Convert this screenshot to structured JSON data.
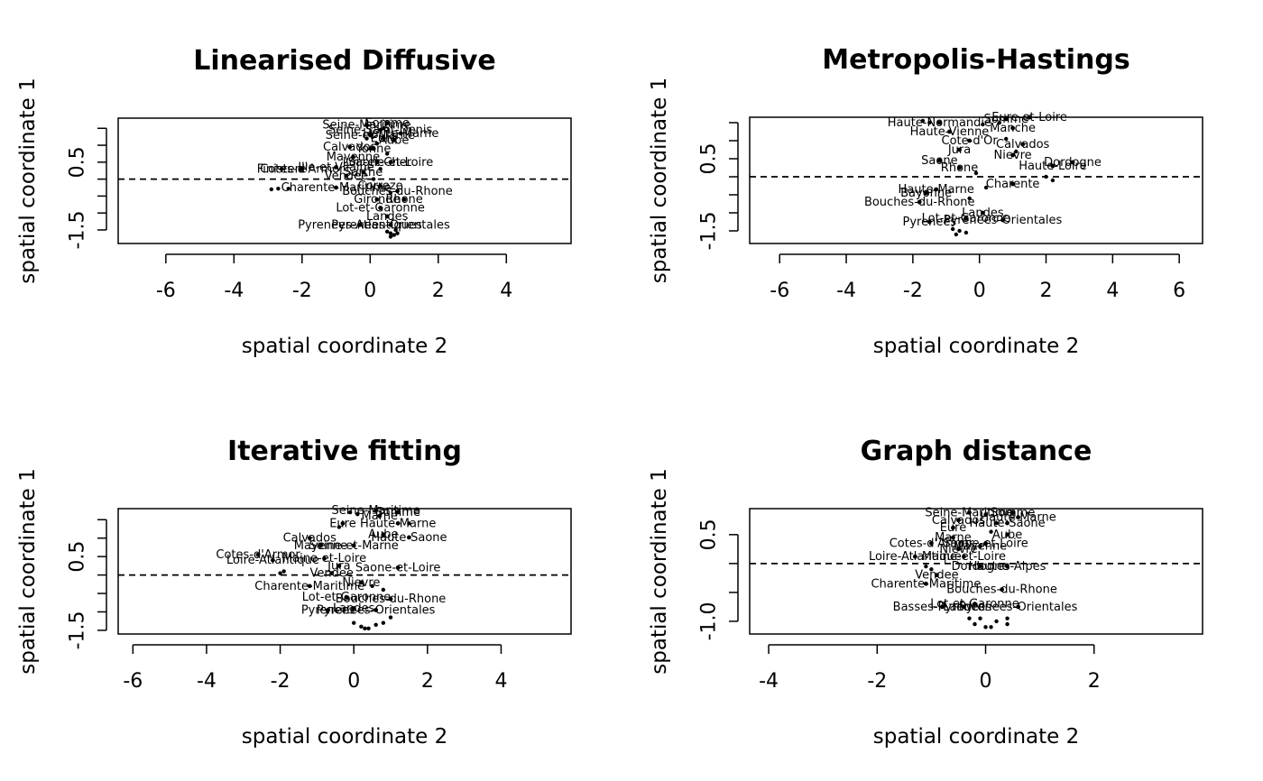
{
  "chart_data": [
    {
      "type": "scatter",
      "title": "Linearised Diffusive",
      "xlabel": "spatial coordinate 2",
      "ylabel": "spatial coordinate 1",
      "xlim": [
        -7.4,
        5.9
      ],
      "ylim": [
        -1.9,
        1.8
      ],
      "xticks": [
        -6,
        -4,
        -2,
        0,
        2,
        4
      ],
      "yticks": [
        -1.5,
        -1.0,
        -0.5,
        0.0,
        0.5,
        1.0,
        1.5
      ],
      "ytick_labels": [
        "-1.5",
        "",
        "",
        "",
        "0.5",
        "",
        ""
      ],
      "hline": 0,
      "points": [
        {
          "x": -0.1,
          "y": 1.6,
          "label": "Seine-Maritime"
        },
        {
          "x": 0.5,
          "y": 1.65,
          "label": "Somme"
        },
        {
          "x": 0.3,
          "y": 1.45,
          "label": "Seine-Saint-Denis"
        },
        {
          "x": 0.9,
          "y": 1.35,
          "label": "Haute-Marne"
        },
        {
          "x": 0.0,
          "y": 1.3,
          "label": "Seine-et-Marne"
        },
        {
          "x": 0.4,
          "y": 1.2,
          "label": "Eure"
        },
        {
          "x": 0.7,
          "y": 1.15,
          "label": "Aube"
        },
        {
          "x": -0.6,
          "y": 0.95,
          "label": "Calvados"
        },
        {
          "x": 0.1,
          "y": 0.9,
          "label": "Yonne"
        },
        {
          "x": -0.5,
          "y": 0.65,
          "label": "Mayenne"
        },
        {
          "x": 0.6,
          "y": 0.5,
          "label": "Saone-et-Loire"
        },
        {
          "x": -2.0,
          "y": 0.3,
          "label": "Cotes-d'Armor"
        },
        {
          "x": -1.0,
          "y": 0.35,
          "label": "Ille-et-Vilaine"
        },
        {
          "x": -2.6,
          "y": 0.3,
          "label": "Finistere"
        },
        {
          "x": -0.7,
          "y": 0.1,
          "label": "Vendee"
        },
        {
          "x": -1.0,
          "y": -0.25,
          "label": "Charente-Maritime"
        },
        {
          "x": 0.8,
          "y": -0.35,
          "label": "Bouches-du-Rhone"
        },
        {
          "x": 1.0,
          "y": -0.6,
          "label": "Rhone"
        },
        {
          "x": 0.3,
          "y": -0.85,
          "label": "Lot-et-Garonne"
        },
        {
          "x": 0.5,
          "y": -1.1,
          "label": "Landes"
        },
        {
          "x": 0.6,
          "y": -1.35,
          "label": "Pyrenees-Orientales"
        },
        {
          "x": -0.3,
          "y": -1.35,
          "label": "Pyrenees-Atlantiques"
        },
        {
          "x": 0.2,
          "y": 0.5,
          "label": "Loir-et-Cher"
        },
        {
          "x": -0.2,
          "y": 0.2,
          "label": "Sarthe"
        },
        {
          "x": 0.3,
          "y": -0.2,
          "label": "Correze"
        },
        {
          "x": 0.2,
          "y": -0.6,
          "label": "Gironde"
        }
      ],
      "extra_points": [
        {
          "x": -2.9,
          "y": -0.3
        },
        {
          "x": -2.7,
          "y": -0.28
        },
        {
          "x": -2.4,
          "y": -0.28
        },
        {
          "x": 0.5,
          "y": -1.55
        },
        {
          "x": 0.6,
          "y": -1.6
        },
        {
          "x": 0.7,
          "y": -1.65
        },
        {
          "x": 0.75,
          "y": -1.5
        },
        {
          "x": 0.6,
          "y": -1.7
        },
        {
          "x": 0.8,
          "y": -1.6
        },
        {
          "x": 0.0,
          "y": 0.9
        },
        {
          "x": 0.2,
          "y": 1.05
        },
        {
          "x": -0.1,
          "y": 1.2
        },
        {
          "x": 0.4,
          "y": 1.5
        },
        {
          "x": 0.5,
          "y": 0.75
        },
        {
          "x": 0.3,
          "y": 0.3
        },
        {
          "x": 0.1,
          "y": 0.0
        },
        {
          "x": 0.6,
          "y": -0.4
        }
      ]
    },
    {
      "type": "scatter",
      "title": "Metropolis-Hastings",
      "xlabel": "spatial coordinate 2",
      "ylabel": "spatial coordinate 1",
      "xlim": [
        -6.9,
        6.7
      ],
      "ylim": [
        -1.85,
        1.65
      ],
      "xticks": [
        -6,
        -4,
        -2,
        0,
        2,
        4,
        6
      ],
      "yticks": [
        -1.5,
        -1.0,
        -0.5,
        0.0,
        0.5,
        1.0,
        1.5
      ],
      "ytick_labels": [
        "-1.5",
        "",
        "",
        "",
        "0.5",
        "",
        ""
      ],
      "hline": 0,
      "points": [
        {
          "x": -1.2,
          "y": 1.5,
          "label": "Haute-Normandie"
        },
        {
          "x": 0.8,
          "y": 1.6,
          "label": "Somme"
        },
        {
          "x": 1.5,
          "y": 1.65,
          "label": "Eure-et-Loire"
        },
        {
          "x": -0.9,
          "y": 1.25,
          "label": "Haute-Vienne"
        },
        {
          "x": 1.0,
          "y": 1.35,
          "label": "Manche"
        },
        {
          "x": -0.3,
          "y": 1.0,
          "label": "Cote-d'Or"
        },
        {
          "x": 1.3,
          "y": 0.9,
          "label": "Calvados"
        },
        {
          "x": -0.6,
          "y": 0.75,
          "label": "Jura"
        },
        {
          "x": 1.0,
          "y": 0.6,
          "label": "Nievre"
        },
        {
          "x": -1.2,
          "y": 0.45,
          "label": "Saone"
        },
        {
          "x": 2.8,
          "y": 0.4,
          "label": "Dordogne"
        },
        {
          "x": 2.2,
          "y": 0.3,
          "label": "Haute-Loire"
        },
        {
          "x": -0.6,
          "y": 0.25,
          "label": "Rhone"
        },
        {
          "x": 1.0,
          "y": -0.2,
          "label": "Charente"
        },
        {
          "x": -1.3,
          "y": -0.35,
          "label": "Haute-Marne"
        },
        {
          "x": -1.6,
          "y": -0.45,
          "label": "Bayonne"
        },
        {
          "x": -1.8,
          "y": -0.7,
          "label": "Bouches-du-Rhone"
        },
        {
          "x": 0.1,
          "y": -1.0,
          "label": "Landes"
        },
        {
          "x": -0.4,
          "y": -1.15,
          "label": "Lot-et-Garonne"
        },
        {
          "x": -1.5,
          "y": -1.25,
          "label": "Pyrenees"
        },
        {
          "x": 0.7,
          "y": -1.2,
          "label": "Pyrenees-Orientales"
        }
      ],
      "extra_points": [
        {
          "x": -1.7,
          "y": 1.55
        },
        {
          "x": -1.5,
          "y": 1.5
        },
        {
          "x": 0.1,
          "y": 1.45
        },
        {
          "x": 0.6,
          "y": 1.5
        },
        {
          "x": 0.8,
          "y": 1.05
        },
        {
          "x": 1.1,
          "y": 0.7
        },
        {
          "x": 2.0,
          "y": 0.0
        },
        {
          "x": 2.2,
          "y": -0.1
        },
        {
          "x": -0.8,
          "y": -1.45
        },
        {
          "x": -0.6,
          "y": -1.5
        },
        {
          "x": -0.4,
          "y": -1.55
        },
        {
          "x": -0.7,
          "y": -1.6
        },
        {
          "x": -0.3,
          "y": -0.6
        },
        {
          "x": 0.2,
          "y": -0.3
        },
        {
          "x": -0.1,
          "y": 0.1
        }
      ]
    },
    {
      "type": "scatter",
      "title": "Iterative fitting",
      "xlabel": "spatial coordinate 2",
      "ylabel": "spatial coordinate 1",
      "xlim": [
        -6.4,
        5.9
      ],
      "ylim": [
        -1.6,
        1.8
      ],
      "xticks": [
        -6,
        -4,
        -2,
        0,
        2,
        4
      ],
      "yticks": [
        -1.5,
        -1.0,
        -0.5,
        0.0,
        0.5,
        1.0,
        1.5
      ],
      "ytick_labels": [
        "-1.5",
        "",
        "",
        "",
        "0.5",
        "",
        ""
      ],
      "hline": 0,
      "points": [
        {
          "x": 0.6,
          "y": 1.75,
          "label": "Seine-Maritime"
        },
        {
          "x": 1.2,
          "y": 1.7,
          "label": "Somme"
        },
        {
          "x": 0.7,
          "y": 1.6,
          "label": "Marne"
        },
        {
          "x": -0.3,
          "y": 1.4,
          "label": "Eure"
        },
        {
          "x": 1.2,
          "y": 1.4,
          "label": "Haute-Marne"
        },
        {
          "x": 0.8,
          "y": 1.1,
          "label": "Aube"
        },
        {
          "x": 1.5,
          "y": 1.02,
          "label": "Haute-Saone"
        },
        {
          "x": -1.2,
          "y": 1.0,
          "label": "Calvados"
        },
        {
          "x": 0.0,
          "y": 0.8,
          "label": "Seine-et-Marne"
        },
        {
          "x": -0.9,
          "y": 0.8,
          "label": "Mayenne"
        },
        {
          "x": -2.6,
          "y": 0.55,
          "label": "Cotes-d'Armor"
        },
        {
          "x": -2.2,
          "y": 0.4,
          "label": "Loire-Atlantique"
        },
        {
          "x": -0.8,
          "y": 0.45,
          "label": "Maine-et-Loire"
        },
        {
          "x": -0.4,
          "y": 0.25,
          "label": "Jura"
        },
        {
          "x": 1.2,
          "y": 0.2,
          "label": "Saone-et-Loire"
        },
        {
          "x": -0.6,
          "y": 0.05,
          "label": "Vendee"
        },
        {
          "x": 0.2,
          "y": -0.2,
          "label": "Nievre"
        },
        {
          "x": -1.2,
          "y": -0.3,
          "label": "Charente-Maritime"
        },
        {
          "x": 1.0,
          "y": -0.65,
          "label": "Bouches-du-Rhone"
        },
        {
          "x": -0.2,
          "y": -0.6,
          "label": "Lot-et-Garonne"
        },
        {
          "x": 0.0,
          "y": -0.9,
          "label": "Landes"
        },
        {
          "x": 0.6,
          "y": -0.95,
          "label": "Pyrenees-Orientales"
        },
        {
          "x": -0.7,
          "y": -0.95,
          "label": "Pyrenees"
        }
      ],
      "extra_points": [
        {
          "x": -0.1,
          "y": 1.7
        },
        {
          "x": 0.1,
          "y": 1.65
        },
        {
          "x": -0.4,
          "y": 1.3
        },
        {
          "x": 1.5,
          "y": 1.4
        },
        {
          "x": -2.0,
          "y": 0.05
        },
        {
          "x": -1.9,
          "y": 0.1
        },
        {
          "x": 0.0,
          "y": -1.3
        },
        {
          "x": 0.2,
          "y": -1.4
        },
        {
          "x": 0.4,
          "y": -1.45
        },
        {
          "x": 0.6,
          "y": -1.35
        },
        {
          "x": 0.8,
          "y": -1.3
        },
        {
          "x": 1.0,
          "y": -1.15
        },
        {
          "x": 0.3,
          "y": -1.45
        },
        {
          "x": 0.5,
          "y": -0.3
        },
        {
          "x": 0.8,
          "y": -0.4
        }
      ]
    },
    {
      "type": "scatter",
      "title": "Graph distance",
      "xlabel": "spatial coordinate 2",
      "ylabel": "spatial coordinate 1",
      "xlim": [
        -4.35,
        4.0
      ],
      "ylim": [
        -1.22,
        0.95
      ],
      "xticks": [
        -4,
        -2,
        0,
        2
      ],
      "yticks": [
        -1.0,
        -0.5,
        0.0,
        0.5
      ],
      "ytick_labels": [
        "-1.0",
        "",
        "",
        "0.5"
      ],
      "hline": 0,
      "points": [
        {
          "x": -0.3,
          "y": 0.88,
          "label": "Seine-Maritime"
        },
        {
          "x": 0.5,
          "y": 0.88,
          "label": "Somme"
        },
        {
          "x": -0.5,
          "y": 0.75,
          "label": "Calvados"
        },
        {
          "x": 0.6,
          "y": 0.8,
          "label": "Haute-Marne"
        },
        {
          "x": -0.6,
          "y": 0.62,
          "label": "Eure"
        },
        {
          "x": 0.4,
          "y": 0.7,
          "label": "Haute-Saone"
        },
        {
          "x": -0.6,
          "y": 0.45,
          "label": "Marne"
        },
        {
          "x": -0.1,
          "y": 0.3,
          "label": "Mayenne"
        },
        {
          "x": 0.4,
          "y": 0.5,
          "label": "Aube"
        },
        {
          "x": -0.5,
          "y": 0.25,
          "label": "Nievre"
        },
        {
          "x": -1.0,
          "y": 0.35,
          "label": "Cotes-d'Armor"
        },
        {
          "x": 0.0,
          "y": 0.35,
          "label": "Saone-et-Loire"
        },
        {
          "x": -0.4,
          "y": 0.12,
          "label": "Maine-et-Loire"
        },
        {
          "x": -1.3,
          "y": 0.12,
          "label": "Loire-Atlantique"
        },
        {
          "x": -0.1,
          "y": -0.05,
          "label": "Dordogne"
        },
        {
          "x": 0.4,
          "y": -0.05,
          "label": "Hautes-Alpes"
        },
        {
          "x": -0.9,
          "y": -0.2,
          "label": "Vendee"
        },
        {
          "x": -1.1,
          "y": -0.35,
          "label": "Charente-Maritime"
        },
        {
          "x": 0.3,
          "y": -0.45,
          "label": "Bouches-du-Rhone"
        },
        {
          "x": -0.2,
          "y": -0.7,
          "label": "Lot-et-Garonne"
        },
        {
          "x": -0.4,
          "y": -0.75,
          "label": "Landes"
        },
        {
          "x": 0.6,
          "y": -0.75,
          "label": "Pyrenees-Orientales"
        },
        {
          "x": -0.8,
          "y": -0.75,
          "label": "Basses-Pyrenees"
        }
      ],
      "extra_points": [
        {
          "x": -0.3,
          "y": -0.95
        },
        {
          "x": -0.2,
          "y": -1.05
        },
        {
          "x": 0.0,
          "y": -1.1
        },
        {
          "x": 0.2,
          "y": -1.0
        },
        {
          "x": 0.4,
          "y": -1.05
        },
        {
          "x": 0.4,
          "y": -0.95
        },
        {
          "x": -0.1,
          "y": -0.95
        },
        {
          "x": 0.1,
          "y": -1.1
        },
        {
          "x": -1.1,
          "y": -0.05
        },
        {
          "x": -1.0,
          "y": -0.1
        },
        {
          "x": 0.0,
          "y": 0.85
        },
        {
          "x": 0.2,
          "y": 0.7
        },
        {
          "x": 0.1,
          "y": 0.55
        }
      ]
    }
  ]
}
